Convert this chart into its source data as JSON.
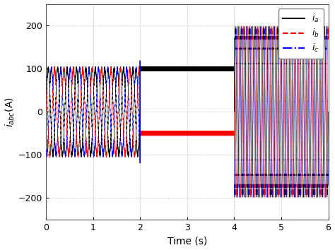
{
  "xlabel": "Time (s)",
  "ylabel": "$i_{abc}$(A)",
  "xlim": [
    0,
    6
  ],
  "ylim": [
    -250,
    250
  ],
  "yticks": [
    -200,
    -100,
    0,
    100,
    200
  ],
  "xticks": [
    0,
    1,
    2,
    3,
    4,
    5,
    6
  ],
  "t_end": 6.0,
  "amp1": 100,
  "amp2_dc": 100,
  "amp3": 190,
  "color_a": "#000000",
  "color_b": "#ff0000",
  "color_c": "#0000ff",
  "grid_color": "#b0b0b0",
  "bg_color": "#ffffff",
  "legend_labels": [
    "$i_a$",
    "$i_b$",
    "$i_c$"
  ],
  "dt": 5e-05,
  "f1": 5.0,
  "f_ripple": 250.0,
  "f3": 10.0
}
